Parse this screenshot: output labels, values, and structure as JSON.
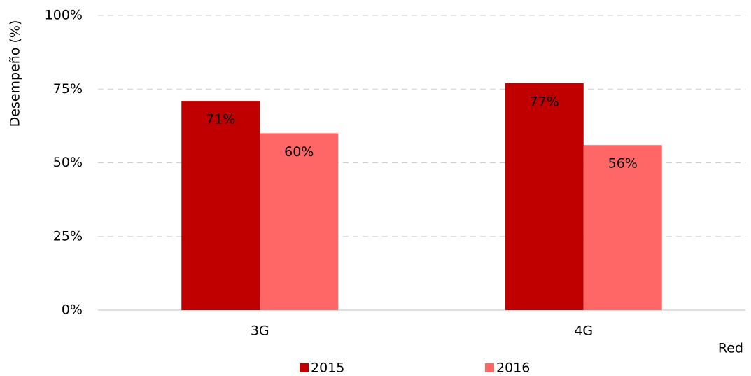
{
  "chart_data": {
    "type": "bar",
    "y_label": "Desempeño (%)",
    "x_label": "Red",
    "categories": [
      "3G",
      "4G"
    ],
    "series": [
      {
        "name": "2015",
        "color": "#c00000",
        "values": [
          71,
          77
        ],
        "value_labels": [
          "71%",
          "77%"
        ]
      },
      {
        "name": "2016",
        "color": "#ff6666",
        "values": [
          60,
          56
        ],
        "value_labels": [
          "60%",
          "56%"
        ]
      }
    ],
    "ylim": [
      0,
      100
    ],
    "yticks": [
      {
        "value": 0,
        "label": "0%"
      },
      {
        "value": 25,
        "label": "25%"
      },
      {
        "value": 50,
        "label": "50%"
      },
      {
        "value": 75,
        "label": "75%"
      },
      {
        "value": 100,
        "label": "100%"
      }
    ],
    "grid": true,
    "legend": "bottom"
  }
}
